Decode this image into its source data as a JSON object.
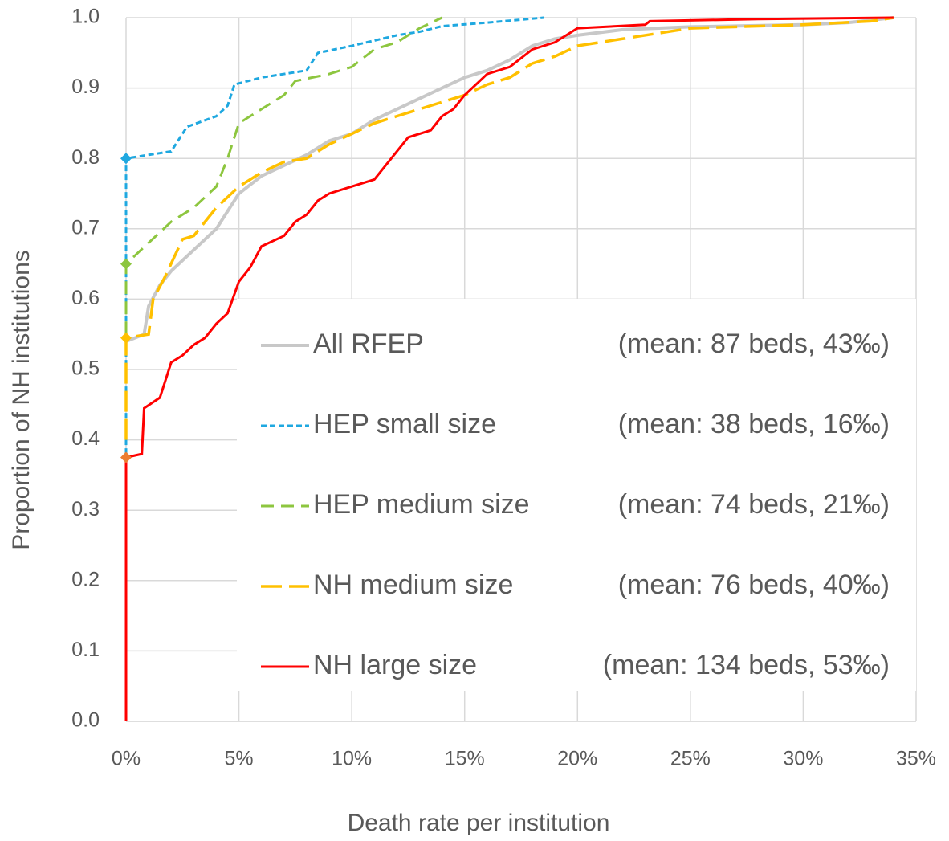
{
  "chart_data": {
    "type": "line",
    "x_label": "Death rate per institution",
    "y_label": "Proportion of NH institutions",
    "xlim": [
      0,
      35
    ],
    "xticks": [
      {
        "value": 0,
        "label": "0%"
      },
      {
        "value": 5,
        "label": "5%"
      },
      {
        "value": 10,
        "label": "10%"
      },
      {
        "value": 15,
        "label": "15%"
      },
      {
        "value": 20,
        "label": "20%"
      },
      {
        "value": 25,
        "label": "25%"
      },
      {
        "value": 30,
        "label": "30%"
      },
      {
        "value": 35,
        "label": "35%"
      }
    ],
    "ylim": [
      0,
      1
    ],
    "yticks": [
      {
        "value": 0,
        "label": "0.0"
      },
      0.1,
      0.2,
      0.3,
      0.4,
      0.5,
      0.6,
      0.7,
      0.8,
      0.9,
      {
        "value": 1,
        "label": "1.0"
      }
    ],
    "grid": true,
    "series": [
      {
        "name": "All RFEP",
        "legend_note": "(mean: 87 beds, 43‰)",
        "color": "#c8c8c8",
        "line_style": "solid",
        "width": 4,
        "x": [
          0,
          0.8,
          1,
          1.5,
          2,
          3,
          4,
          4.8,
          5,
          6,
          7,
          8,
          9,
          10,
          11,
          12,
          13,
          14,
          15,
          16,
          17,
          18,
          19,
          20,
          22,
          25,
          30,
          32,
          34
        ],
        "values": [
          0.54,
          0.55,
          0.59,
          0.62,
          0.64,
          0.67,
          0.7,
          0.74,
          0.75,
          0.775,
          0.79,
          0.805,
          0.825,
          0.835,
          0.855,
          0.87,
          0.885,
          0.9,
          0.915,
          0.925,
          0.94,
          0.96,
          0.97,
          0.975,
          0.983,
          0.987,
          0.99,
          0.993,
          1.0
        ]
      },
      {
        "name": "HEP small size",
        "legend_note": "(mean: 38 beds, 16‰)",
        "color": "#1fa8e0",
        "line_style": "dotted",
        "width": 3,
        "marker_color": "#1fa8e0",
        "x": [
          0,
          0,
          2,
          2.7,
          4,
          4.5,
          4.8,
          6,
          8,
          8.5,
          10,
          12,
          13,
          14,
          16,
          18.5
        ],
        "values": [
          0.38,
          0.8,
          0.81,
          0.845,
          0.86,
          0.875,
          0.905,
          0.915,
          0.925,
          0.95,
          0.96,
          0.975,
          0.98,
          0.988,
          0.993,
          1.0
        ]
      },
      {
        "name": "HEP medium size",
        "legend_note": "(mean: 74 beds, 21‰)",
        "color": "#8dc63f",
        "line_style": "dashed",
        "width": 3,
        "marker_color": "#8dc63f",
        "x": [
          0,
          0,
          1,
          2,
          3,
          4,
          4.5,
          5,
          6,
          7,
          7.5,
          9,
          10,
          11,
          12,
          13,
          14
        ],
        "values": [
          0.55,
          0.65,
          0.68,
          0.71,
          0.73,
          0.76,
          0.8,
          0.85,
          0.87,
          0.89,
          0.91,
          0.92,
          0.93,
          0.955,
          0.965,
          0.985,
          1.0
        ]
      },
      {
        "name": "NH medium size",
        "legend_note": "(mean: 76 beds, 40‰)",
        "color": "#ffc000",
        "line_style": "long-dash",
        "width": 3.5,
        "marker_color": "#ffc000",
        "x": [
          0,
          0,
          1,
          1.2,
          1.7,
          2.5,
          3,
          4,
          5,
          6,
          7,
          8,
          9,
          10,
          11,
          12,
          13,
          14,
          15,
          16,
          17,
          18,
          19,
          20,
          22,
          25,
          30,
          33,
          34
        ],
        "values": [
          0.4,
          0.545,
          0.55,
          0.6,
          0.63,
          0.685,
          0.69,
          0.73,
          0.76,
          0.78,
          0.795,
          0.8,
          0.82,
          0.835,
          0.85,
          0.86,
          0.87,
          0.88,
          0.89,
          0.905,
          0.915,
          0.935,
          0.945,
          0.96,
          0.97,
          0.985,
          0.99,
          0.995,
          1.0
        ]
      },
      {
        "name": "NH large size",
        "legend_note": "(mean: 134 beds, 53‰)",
        "color": "#ff0000",
        "line_style": "solid",
        "width": 3,
        "marker_color": "#ed7d31",
        "x": [
          0,
          0,
          0.7,
          0.8,
          1.5,
          1.8,
          2,
          2.5,
          3,
          3.5,
          4,
          4.5,
          5,
          5.5,
          6,
          7,
          7.5,
          8,
          8.5,
          9,
          10,
          11,
          11.5,
          12,
          12.5,
          13.5,
          14,
          14.5,
          15,
          16,
          17,
          18,
          19,
          19.5,
          20,
          23,
          23.2,
          28,
          34
        ],
        "values": [
          0,
          0.375,
          0.38,
          0.445,
          0.46,
          0.49,
          0.51,
          0.52,
          0.535,
          0.545,
          0.565,
          0.58,
          0.625,
          0.645,
          0.675,
          0.69,
          0.71,
          0.72,
          0.74,
          0.75,
          0.76,
          0.77,
          0.79,
          0.81,
          0.83,
          0.84,
          0.86,
          0.87,
          0.89,
          0.92,
          0.93,
          0.955,
          0.965,
          0.975,
          0.985,
          0.99,
          0.995,
          0.998,
          1.0
        ]
      }
    ]
  }
}
